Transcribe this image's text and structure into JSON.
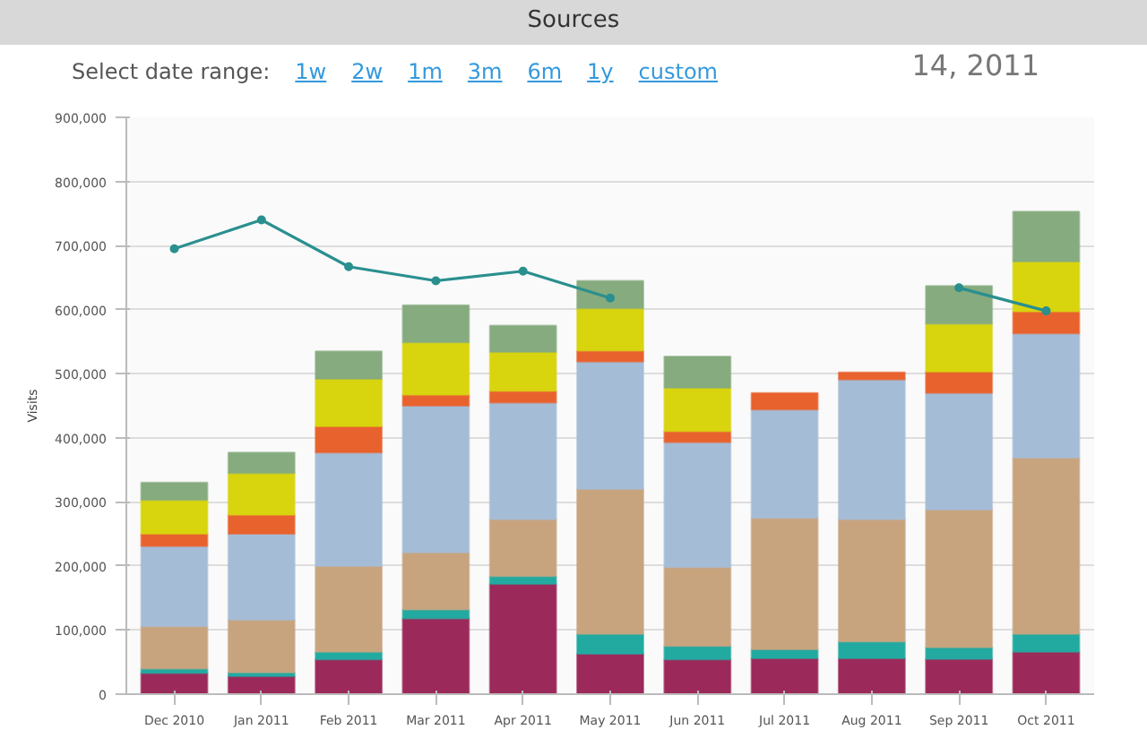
{
  "chart_data": {
    "type": "bar",
    "title": "Sources",
    "ylabel": "Visits",
    "stacked": true,
    "grid": "y",
    "marker": "circle",
    "annotations": [
      "Select date range:",
      "1w",
      "2w",
      "1m",
      "3m",
      "6m",
      "1y",
      "custom",
      "14, 2011"
    ],
    "categories": [
      "Dec 2010",
      "Jan 2011",
      "Feb 2011",
      "Mar 2011",
      "Apr 2011",
      "May 2011",
      "Jun 2011",
      "Jul 2011",
      "Aug 2011",
      "Sep 2011",
      "Oct 2011"
    ],
    "ylim": [
      0,
      900000
    ],
    "yticks": [
      {
        "value": 0,
        "label": "0"
      },
      {
        "value": 100000,
        "label": "100,000"
      },
      {
        "value": 200000,
        "label": "200,000"
      },
      {
        "value": 300000,
        "label": "300,000"
      },
      {
        "value": 400000,
        "label": "400,000"
      },
      {
        "value": 500000,
        "label": "500,000"
      },
      {
        "value": 600000,
        "label": "600,000"
      },
      {
        "value": 700000,
        "label": "700,000"
      },
      {
        "value": 800000,
        "label": "800,000"
      },
      {
        "value": 900000,
        "label": "900,000"
      }
    ],
    "series": [
      {
        "color": "#9b2a5a",
        "values": [
          33000,
          28000,
          54000,
          118000,
          172000,
          63000,
          54000,
          56000,
          56000,
          55000,
          66000
        ]
      },
      {
        "color": "#22aaa0",
        "values": [
          7000,
          6000,
          12000,
          14000,
          12000,
          31000,
          21000,
          14000,
          26000,
          18000,
          28000
        ]
      },
      {
        "color": "#c8a47e",
        "values": [
          66000,
          82000,
          134000,
          89000,
          89000,
          226000,
          123000,
          205000,
          191000,
          215000,
          275000
        ]
      },
      {
        "color": "#a5bcd6",
        "values": [
          125000,
          134000,
          177000,
          229000,
          182000,
          199000,
          195000,
          169000,
          218000,
          182000,
          194000
        ]
      },
      {
        "color": "#e8622e",
        "values": [
          19000,
          30000,
          41000,
          17000,
          18000,
          17000,
          17000,
          26000,
          11000,
          33000,
          34000
        ]
      },
      {
        "color": "#d8d40e",
        "values": [
          53000,
          65000,
          74000,
          82000,
          61000,
          66000,
          68000,
          null,
          null,
          75000,
          78000
        ]
      },
      {
        "color": "#86ab7e",
        "values": [
          27000,
          32000,
          43000,
          58000,
          41000,
          43000,
          49000,
          null,
          null,
          59000,
          78000
        ]
      },
      {
        "type": "line",
        "color": "#2a8f8f",
        "values": [
          695000,
          740000,
          667000,
          645000,
          660000,
          618000,
          null,
          null,
          null,
          634000,
          598000
        ]
      }
    ]
  }
}
